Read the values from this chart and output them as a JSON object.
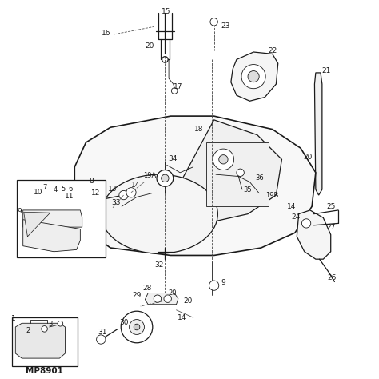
{
  "bg_color": "#ffffff",
  "line_color": "#1a1a1a",
  "watermark": "MP8901",
  "fig_width": 4.74,
  "fig_height": 4.74,
  "dpi": 100
}
